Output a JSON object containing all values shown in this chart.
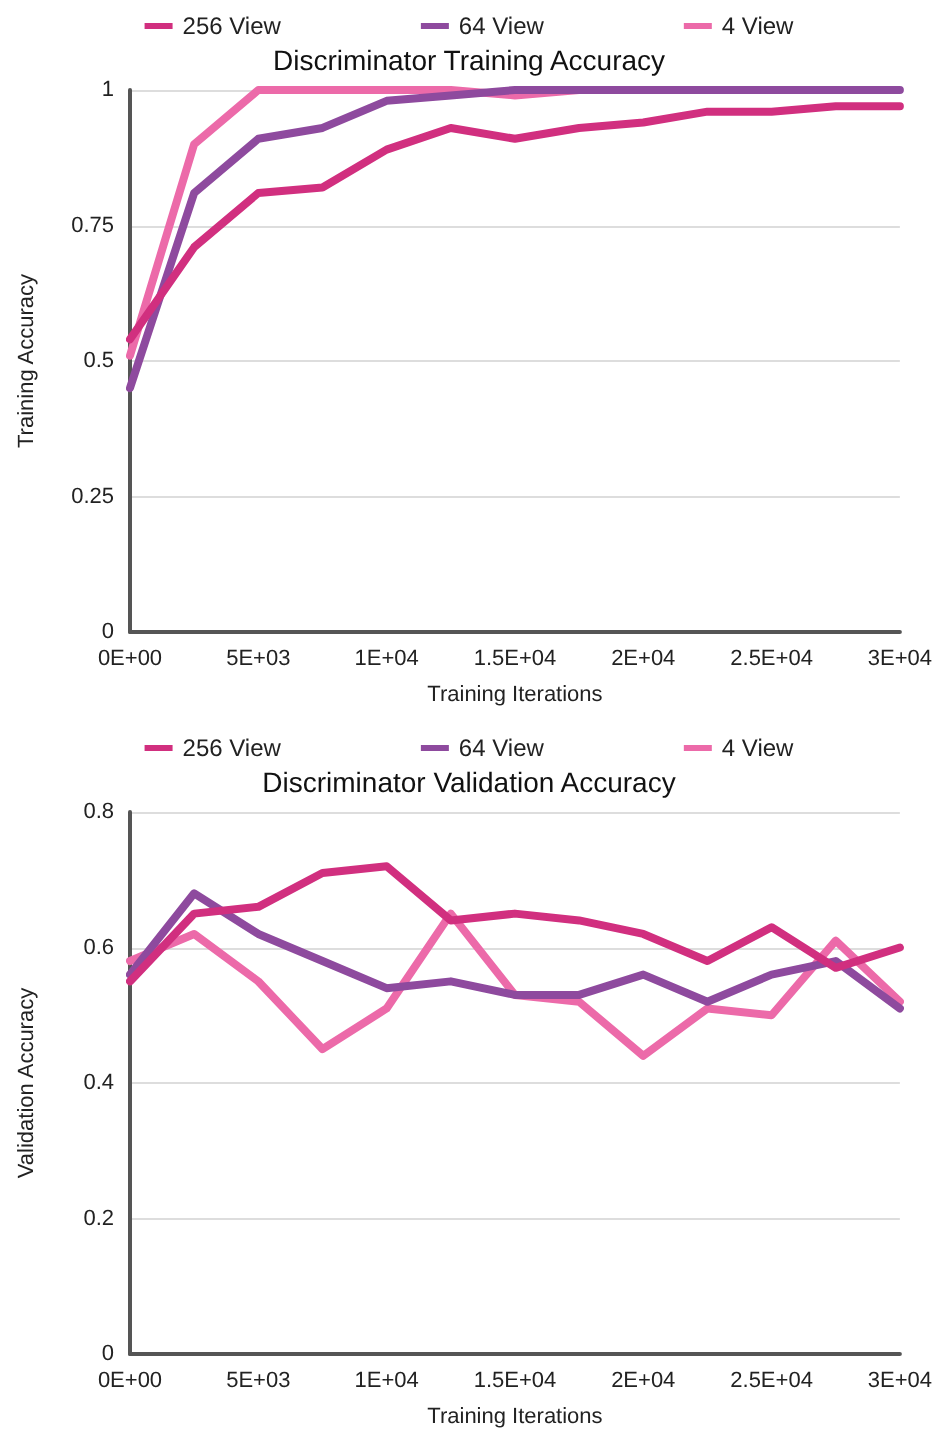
{
  "chart_data": [
    {
      "type": "line",
      "title": "Discriminator Training Accuracy",
      "xlabel": "Training Iterations",
      "ylabel": "Training Accuracy",
      "x": [
        0,
        2500,
        5000,
        7500,
        10000,
        12500,
        15000,
        17500,
        20000,
        22500,
        25000,
        27500,
        30000
      ],
      "series": [
        {
          "name": "256 View",
          "color": "#d12f7f",
          "values": [
            0.54,
            0.71,
            0.81,
            0.82,
            0.89,
            0.93,
            0.91,
            0.93,
            0.94,
            0.96,
            0.96,
            0.97,
            0.97
          ]
        },
        {
          "name": "64 View",
          "color": "#8e4a9e",
          "values": [
            0.45,
            0.81,
            0.91,
            0.93,
            0.98,
            0.99,
            1,
            1,
            1,
            1,
            1,
            1,
            1
          ]
        },
        {
          "name": "4 View",
          "color": "#ec6aa9",
          "values": [
            0.51,
            0.9,
            1,
            1,
            1,
            1,
            0.99,
            1,
            null,
            null,
            null,
            null,
            null
          ]
        }
      ],
      "xlim": [
        0,
        30000
      ],
      "xticks": [
        {
          "value": 0,
          "label": "0E+00"
        },
        {
          "value": 5000,
          "label": "5E+03"
        },
        {
          "value": 10000,
          "label": "1E+04"
        },
        {
          "value": 15000,
          "label": "1.5E+04"
        },
        {
          "value": 20000,
          "label": "2E+04"
        },
        {
          "value": 25000,
          "label": "2.5E+04"
        },
        {
          "value": 30000,
          "label": "3E+04"
        }
      ],
      "ylim": [
        0,
        1
      ],
      "yticks": [
        0,
        0.25,
        0.5,
        0.75,
        1
      ],
      "grid": "y",
      "legend": "top",
      "marker": "none",
      "line_style": "solid"
    },
    {
      "type": "line",
      "title": "Discriminator Validation Accuracy",
      "xlabel": "Training Iterations",
      "ylabel": "Validation Accuracy",
      "x": [
        0,
        2500,
        5000,
        7500,
        10000,
        12500,
        15000,
        17500,
        20000,
        22500,
        25000,
        27500,
        30000
      ],
      "series": [
        {
          "name": "256 View",
          "color": "#d12f7f",
          "values": [
            0.55,
            0.65,
            0.66,
            0.71,
            0.72,
            0.64,
            0.65,
            0.64,
            0.62,
            0.58,
            0.63,
            0.57,
            0.6
          ]
        },
        {
          "name": "64 View",
          "color": "#8e4a9e",
          "values": [
            0.56,
            0.68,
            0.62,
            0.58,
            0.54,
            0.55,
            0.53,
            0.53,
            0.56,
            0.52,
            0.56,
            0.58,
            0.51
          ]
        },
        {
          "name": "4 View",
          "color": "#ec6aa9",
          "values": [
            0.58,
            0.62,
            0.55,
            0.45,
            0.51,
            0.65,
            0.53,
            0.52,
            0.44,
            0.51,
            0.5,
            0.61,
            0.52
          ]
        }
      ],
      "xlim": [
        0,
        30000
      ],
      "xticks": [
        {
          "value": 0,
          "label": "0E+00"
        },
        {
          "value": 5000,
          "label": "5E+03"
        },
        {
          "value": 10000,
          "label": "1E+04"
        },
        {
          "value": 15000,
          "label": "1.5E+04"
        },
        {
          "value": 20000,
          "label": "2E+04"
        },
        {
          "value": 25000,
          "label": "2.5E+04"
        },
        {
          "value": 30000,
          "label": "3E+04"
        }
      ],
      "ylim": [
        0,
        0.8
      ],
      "yticks": [
        0,
        0.2,
        0.4,
        0.6,
        0.8
      ],
      "grid": "y",
      "legend": "top",
      "marker": "none",
      "line_style": "solid"
    }
  ]
}
